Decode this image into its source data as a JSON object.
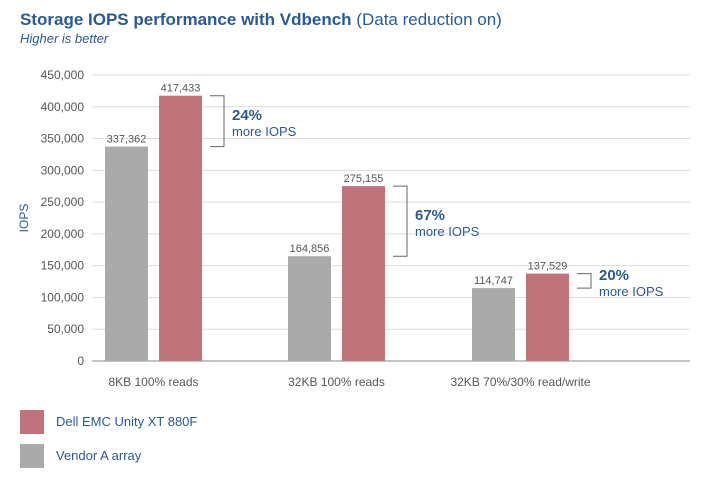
{
  "title_main": "Storage IOPS performance with Vdbench",
  "title_suffix": " (Data reduction on)",
  "subtitle": "Higher is better",
  "colors": {
    "series_a": "#c0737a",
    "series_b": "#aaaaab",
    "text": "#2a5a8f",
    "axis": "#555555"
  },
  "chart_data": {
    "type": "bar",
    "title": "Storage IOPS performance with Vdbench (Data reduction on)",
    "subtitle": "Higher is better",
    "ylabel": "IOPS",
    "xlabel": "",
    "ylim": [
      0,
      450000
    ],
    "yticks": [
      0,
      50000,
      100000,
      150000,
      200000,
      250000,
      300000,
      350000,
      400000,
      450000
    ],
    "ytick_labels": [
      "0",
      "50,000",
      "100,000",
      "150,000",
      "200,000",
      "250,000",
      "300,000",
      "350,000",
      "400,000",
      "450,000"
    ],
    "grid": true,
    "categories": [
      "8KB 100% reads",
      "32KB 100% reads",
      "32KB 70%/30% read/write"
    ],
    "series": [
      {
        "name": "Vendor A array",
        "values": [
          337362,
          164856,
          114747
        ],
        "labels": [
          "337,362",
          "164,856",
          "114,747"
        ]
      },
      {
        "name": "Dell EMC Unity XT 880F",
        "values": [
          417433,
          275155,
          137529
        ],
        "labels": [
          "417,433",
          "275,155",
          "137,529"
        ]
      }
    ],
    "annotations": [
      {
        "category": "8KB 100% reads",
        "percent": "24%",
        "text": "more IOPS"
      },
      {
        "category": "32KB 100% reads",
        "percent": "67%",
        "text": "more IOPS"
      },
      {
        "category": "32KB 70%/30% read/write",
        "percent": "20%",
        "text": "more IOPS"
      }
    ],
    "legend": {
      "placement": "bottom-left",
      "entries": [
        "Dell EMC Unity XT 880F",
        "Vendor A array"
      ]
    }
  }
}
